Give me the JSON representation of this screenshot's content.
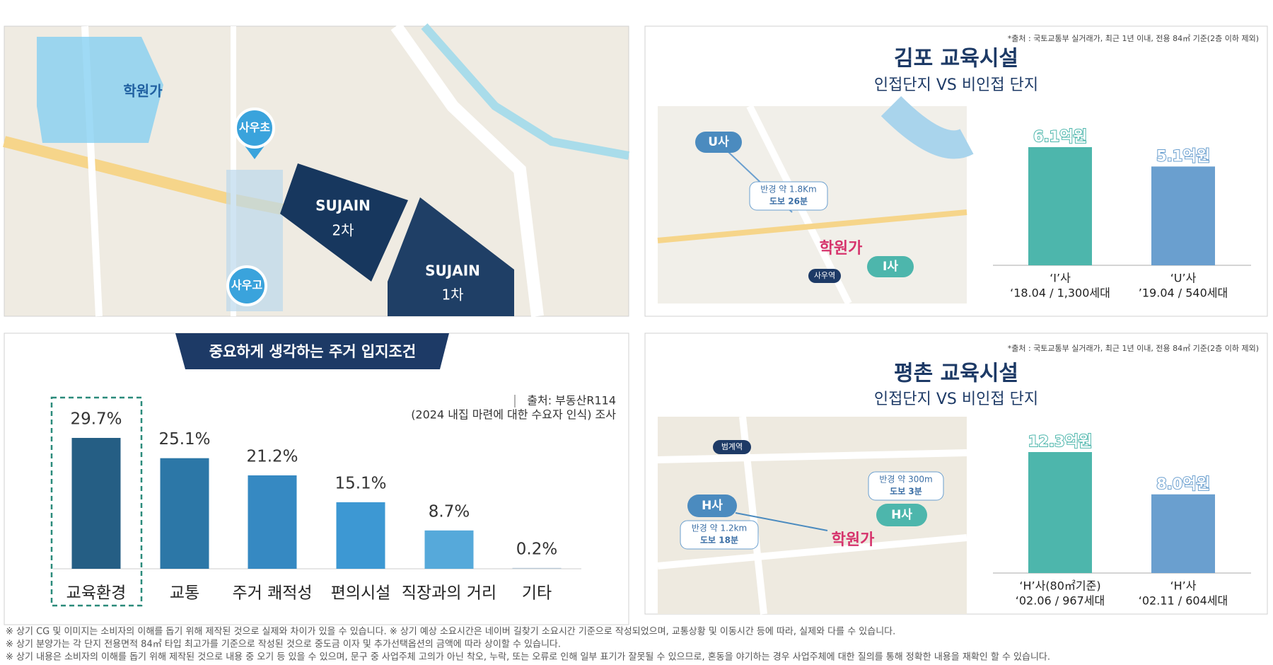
{
  "map": {
    "academy": "학원가",
    "elementary": "사우초",
    "high": "사우고",
    "sujain2_brand": "SUJAIN",
    "sujain2_phase": "2차",
    "sujain1_brand": "SUJAIN",
    "sujain1_phase": "1차"
  },
  "chart_data": [
    {
      "type": "bar",
      "source": "*출처 : 국토교통부 실거래가, 최근 1년 이내, 전용 84㎡ 기준(2층 이하 제외)",
      "title": "김포 교육시설",
      "subtitle": "인접단지 VS 비인접 단지",
      "categories": [
        "‘I’사",
        "‘U’사"
      ],
      "category_details": [
        "‘18.04 / 1,300세대",
        "’19.04 / 540세대"
      ],
      "values": [
        6.1,
        5.1
      ],
      "value_labels": [
        "6.1억원",
        "5.1억원"
      ],
      "colors": [
        "#4db6ac",
        "#6a9fcf"
      ],
      "map_labels": {
        "u": "U사",
        "radius": "반경 약 1.8Km",
        "walk": "도보 26분",
        "academy": "학원가",
        "i": "I사",
        "station": "사우역"
      }
    },
    {
      "type": "bar",
      "title": "중요하게 생각하는 주거 입지조건",
      "source": "출처: 부동산R114",
      "note": "(2024 내집 마련에 대한 수요자 인식) 조사",
      "categories": [
        "교육환경",
        "교통",
        "주거 쾌적성",
        "편의시설",
        "직장과의 거리",
        "기타"
      ],
      "values": [
        29.7,
        25.1,
        21.2,
        15.1,
        8.7,
        0.2
      ],
      "value_labels": [
        "29.7%",
        "25.1%",
        "21.2%",
        "15.1%",
        "8.7%",
        "0.2%"
      ],
      "colors": [
        "#255e84",
        "#2c77a7",
        "#3689c2",
        "#3d98d3",
        "#56a9da",
        "#b8c8d6"
      ]
    },
    {
      "type": "bar",
      "source": "*출처 : 국토교통부 실거래가, 최근 1년 이내, 전용 84㎡ 기준(2층 이하 제외)",
      "title": "평촌 교육시설",
      "subtitle": "인접단지 VS 비인접 단지",
      "categories": [
        "‘H’사(80㎡기준)",
        "‘H’사"
      ],
      "category_details": [
        "‘02.06 / 967세대",
        "‘02.11 / 604세대"
      ],
      "values": [
        12.3,
        8.0
      ],
      "value_labels": [
        "12.3억원",
        "8.0억원"
      ],
      "colors": [
        "#4db6ac",
        "#6a9fcf"
      ],
      "map_labels": {
        "station": "범계역",
        "h_far": "H사",
        "radius_far": "반경 약 1.2km",
        "walk_far": "도보 18분",
        "radius_near": "반경 약 300m",
        "walk_near": "도보 3분",
        "h_near": "H사",
        "academy": "학원가"
      }
    }
  ],
  "footnotes": [
    "※ 상기 CG 및 이미지는 소비자의 이해를 돕기 위해 제작된 것으로 실제와 차이가 있을 수 있습니다. ※ 상기 예상 소요시간은 네이버 길찾기 소요시간 기준으로 작성되었으며, 교통상황 및 이동시간 등에 따라, 실제와 다를 수 있습니다.",
    "※ 상기 분양가는 각 단지 전용면적 84㎡ 타입 최고가를 기준으로 작성된 것으로 중도금 이자 및 추가선택옵션의 금액에 따라 상이할 수 있습니다.",
    "※ 상기 내용은 소비자의 이해를 돕기 위해 제작된 것으로 내용 중 오기 등 있을 수 있으며, 문구 중 사업주체 고의가 아닌 착오, 누락, 또는 오류로 인해 일부 표기가 잘못될 수 있으므로, 혼동을 야기하는 경우 사업주체에 대한 질의를 통해 정확한 내용을 재확인 할 수 있습니다."
  ]
}
